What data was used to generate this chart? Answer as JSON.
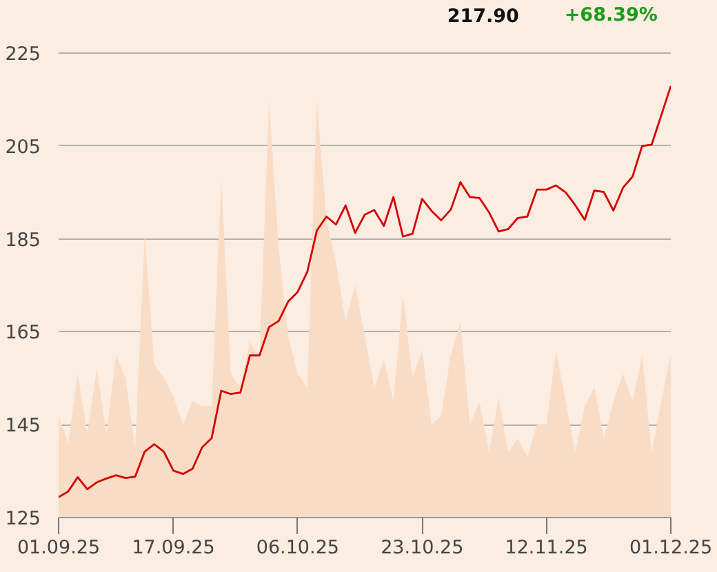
{
  "chart_data": {
    "type": "line",
    "annotations": [
      "217.90",
      "+68.39%"
    ],
    "categories": [
      "01.09.25",
      null,
      null,
      null,
      null,
      null,
      null,
      null,
      null,
      null,
      null,
      null,
      "17.09.25",
      null,
      null,
      null,
      null,
      null,
      null,
      null,
      null,
      null,
      null,
      null,
      null,
      "06.10.25",
      null,
      null,
      null,
      null,
      null,
      null,
      null,
      null,
      null,
      null,
      null,
      null,
      "23.10.25",
      null,
      null,
      null,
      null,
      null,
      null,
      null,
      null,
      null,
      null,
      null,
      null,
      "12.11.25",
      null,
      null,
      null,
      null,
      null,
      null,
      null,
      null,
      null,
      null,
      null,
      null,
      "01.12.25"
    ],
    "series": [
      {
        "type": "area",
        "color": "#f8dcc6",
        "values": [
          147,
          141,
          156,
          143,
          157,
          143,
          160,
          155,
          140,
          186,
          158,
          155,
          151,
          145,
          150,
          149,
          149,
          198,
          156,
          153,
          163,
          159,
          215,
          183,
          164,
          156,
          153,
          215,
          189,
          180,
          167,
          175,
          164,
          153,
          159,
          150,
          173,
          155,
          161,
          145,
          147,
          160,
          167,
          145,
          150,
          139,
          151,
          139,
          142,
          138,
          145,
          145,
          161,
          150,
          139,
          149,
          153,
          142,
          150,
          156,
          150,
          160,
          139,
          150,
          160
        ]
      },
      {
        "color": "#d40000",
        "values": [
          129.4,
          130.6,
          133.7,
          131.1,
          132.6,
          133.4,
          134.1,
          133.5,
          133.8,
          139.2,
          140.8,
          139.2,
          135.1,
          134.4,
          135.5,
          140.1,
          142.1,
          152.3,
          151.6,
          151.9,
          159.9,
          159.9,
          166.0,
          167.3,
          171.5,
          173.6,
          177.9,
          186.8,
          189.8,
          188.1,
          192.2,
          186.3,
          190.2,
          191.2,
          187.8,
          194.0,
          185.5,
          186.1,
          193.6,
          191.0,
          189.0,
          191.3,
          197.2,
          194.0,
          193.8,
          190.7,
          186.6,
          187.1,
          189.5,
          189.8,
          195.6,
          195.6,
          196.5,
          195.0,
          192.3,
          189.1,
          195.4,
          195.1,
          191.1,
          196.0,
          198.4,
          205.0,
          205.3,
          211.6,
          217.9
        ]
      }
    ],
    "ylim": [
      125,
      225
    ],
    "yticks": [
      125,
      145,
      165,
      185,
      205,
      225
    ],
    "grid": "y",
    "marker": "none",
    "line_style": "solid"
  }
}
